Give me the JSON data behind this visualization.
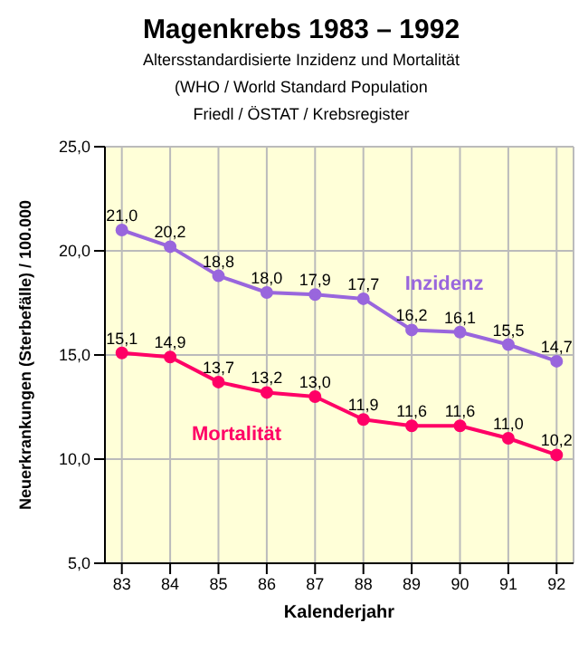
{
  "chart_data": {
    "type": "line",
    "title": "Magenkrebs 1983 – 1992",
    "subtitle": "Altersstandardisierte Inzidenz und Mortalität",
    "annotations": [
      "(WHO / World Standard Population",
      "Friedl / ÖSTAT / Krebsregister"
    ],
    "xlabel": "Kalenderjahr",
    "ylabel": "Neuerkrankungen (Sterbefälle) / 100.000",
    "categories": [
      "83",
      "84",
      "85",
      "86",
      "87",
      "88",
      "89",
      "90",
      "91",
      "92"
    ],
    "series": [
      {
        "name": "Inzidenz",
        "color": "#9966dd",
        "values": [
          21.0,
          20.2,
          18.8,
          18.0,
          17.9,
          17.7,
          16.2,
          16.1,
          15.5,
          14.7
        ],
        "value_labels": [
          "21,0",
          "20,2",
          "18,8",
          "18,0",
          "17,9",
          "17,7",
          "16,2",
          "16,1",
          "15,5",
          "14,7"
        ]
      },
      {
        "name": "Mortalität",
        "color": "#ff0066",
        "values": [
          15.1,
          14.9,
          13.7,
          13.2,
          13.0,
          11.9,
          11.6,
          11.6,
          11.0,
          10.2
        ],
        "value_labels": [
          "15,1",
          "14,9",
          "13,7",
          "13,2",
          "13,0",
          "11,9",
          "11,6",
          "11,6",
          "11,0",
          "10,2"
        ]
      }
    ],
    "ylim": [
      5,
      25
    ],
    "yticks": [
      {
        "value": 5,
        "label": "5,0"
      },
      {
        "value": 10,
        "label": "10,0"
      },
      {
        "value": 15,
        "label": "15,0"
      },
      {
        "value": 20,
        "label": "20,0"
      },
      {
        "value": 25,
        "label": "25,0"
      }
    ],
    "grid": true,
    "marker": "circle",
    "line_style": "solid",
    "legend": false
  }
}
